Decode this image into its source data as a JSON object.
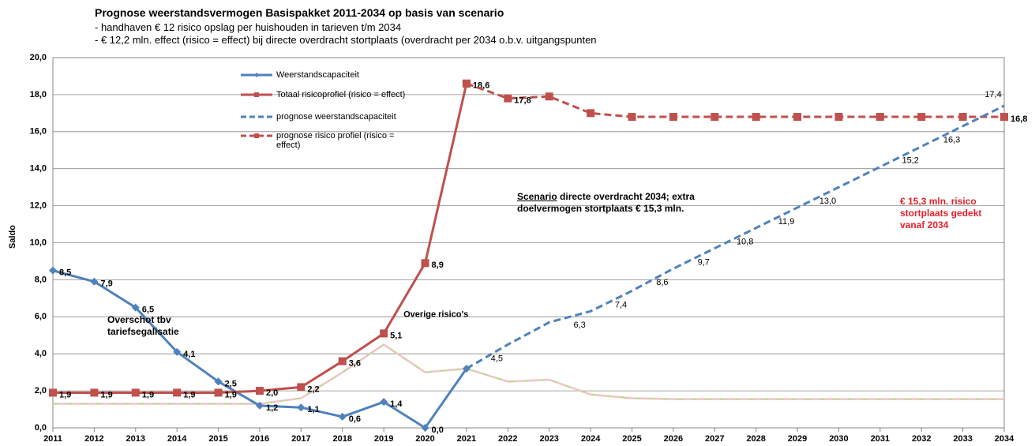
{
  "chart_data": {
    "type": "line",
    "title": "Prognose weerstandsvermogen Basispakket 2011-2034 op basis van scenario",
    "subtitle": [
      "- handhaven € 12 risico opslag per huishouden in tarieven t/m 2034",
      "- € 12,2 mln. effect (risico = effect) bij directe overdracht stortplaats (overdracht per 2034 o.b.v. uitgangspunten"
    ],
    "y_label": "Saldo",
    "categories": [
      "2011",
      "2012",
      "2013",
      "2014",
      "2015",
      "2016",
      "2017",
      "2018",
      "2019",
      "2020",
      "2021",
      "2022",
      "2023",
      "2024",
      "2025",
      "2026",
      "2027",
      "2028",
      "2029",
      "2030",
      "2031",
      "2032",
      "2033",
      "2034"
    ],
    "ylim": [
      0,
      20
    ],
    "yticks": [
      {
        "value": 0,
        "label": "0,0"
      },
      {
        "value": 2,
        "label": "2,0"
      },
      {
        "value": 4,
        "label": "4,0"
      },
      {
        "value": 6,
        "label": "6,0"
      },
      {
        "value": 8,
        "label": "8,0"
      },
      {
        "value": 10,
        "label": "10,0"
      },
      {
        "value": 12,
        "label": "12,0"
      },
      {
        "value": 14,
        "label": "14,0"
      },
      {
        "value": 16,
        "label": "16,0"
      },
      {
        "value": 18,
        "label": "18,0"
      },
      {
        "value": 20,
        "label": "20,0"
      }
    ],
    "grid": true,
    "series": [
      {
        "name": "Weerstandscapaciteit",
        "color": "#4f81bd",
        "dash": false,
        "marker": "diamond",
        "values": [
          8.5,
          7.9,
          6.5,
          4.1,
          2.5,
          1.2,
          1.1,
          0.6,
          1.4,
          0.0,
          3.2,
          null,
          null,
          null,
          null,
          null,
          null,
          null,
          null,
          null,
          null,
          null,
          null,
          null
        ],
        "value_labels": [
          "8,5",
          "7,9",
          "6,5",
          "4,1",
          "2,5",
          "1,2",
          "1,1",
          "0,6",
          "1,4",
          "0,0",
          null,
          null,
          null,
          null,
          null,
          null,
          null,
          null,
          null,
          null,
          null,
          null,
          null,
          null
        ]
      },
      {
        "name": "Totaal risicoprofiel (risico = effect)",
        "color": "#c0504d",
        "dash": false,
        "marker": "square",
        "values": [
          1.9,
          1.9,
          1.9,
          1.9,
          1.9,
          2.0,
          2.2,
          3.6,
          5.1,
          8.9,
          18.6,
          null,
          null,
          null,
          null,
          null,
          null,
          null,
          null,
          null,
          null,
          null,
          null,
          null
        ],
        "value_labels": [
          "1,9",
          "1,9",
          "1,9",
          "1,9",
          "1,9",
          "2,0",
          "2,2",
          "3,6",
          "5,1",
          "8,9",
          "18,6",
          null,
          null,
          null,
          null,
          null,
          null,
          null,
          null,
          null,
          null,
          null,
          null,
          null
        ]
      },
      {
        "name": "prognose weerstandscapaciteit",
        "color": "#4f81bd",
        "dash": true,
        "marker": "none",
        "values": [
          null,
          null,
          null,
          null,
          null,
          null,
          null,
          null,
          null,
          null,
          3.2,
          4.5,
          5.7,
          6.3,
          7.4,
          8.6,
          9.7,
          10.8,
          11.9,
          13.0,
          14.1,
          15.2,
          16.3,
          17.4
        ],
        "value_labels": [
          null,
          null,
          null,
          null,
          null,
          null,
          null,
          null,
          null,
          null,
          null,
          "4,5",
          null,
          "6,3",
          "7,4",
          "8,6",
          "9,7",
          "10,8",
          "11,9",
          "13,0",
          null,
          "15,2",
          "16,3",
          "17,4"
        ]
      },
      {
        "name": "prognose risico profiel (risico = effect)",
        "color": "#c0504d",
        "dash": true,
        "marker": "square",
        "values": [
          null,
          null,
          null,
          null,
          null,
          null,
          null,
          null,
          null,
          null,
          18.6,
          17.8,
          17.9,
          17.0,
          16.8,
          16.8,
          16.8,
          16.8,
          16.8,
          16.8,
          16.8,
          16.8,
          16.8,
          16.8
        ],
        "value_labels": [
          null,
          null,
          null,
          null,
          null,
          null,
          null,
          null,
          null,
          null,
          null,
          "17,8",
          null,
          null,
          null,
          null,
          null,
          null,
          null,
          null,
          null,
          null,
          null,
          "16,8"
        ]
      },
      {
        "name": "Overige risico's",
        "color": "#f2c4c4",
        "dash": false,
        "marker": "none",
        "in_legend": false,
        "values": [
          1.3,
          1.3,
          1.3,
          1.3,
          1.3,
          1.3,
          1.6,
          3.0,
          4.5,
          3.0,
          3.2,
          2.5,
          2.6,
          1.8,
          1.6,
          1.55,
          1.55,
          1.55,
          1.55,
          1.55,
          1.55,
          1.55,
          1.55,
          1.55
        ]
      }
    ],
    "annotations": [
      "Overschot tbv tariefsegalisatie",
      "Scenario",
      "directe overdracht 2034; extra doelvermogen stortplaats € 15,3 mln.",
      "€ 15,3 mln. risico stortplaats gedekt vanaf 2034"
    ]
  }
}
